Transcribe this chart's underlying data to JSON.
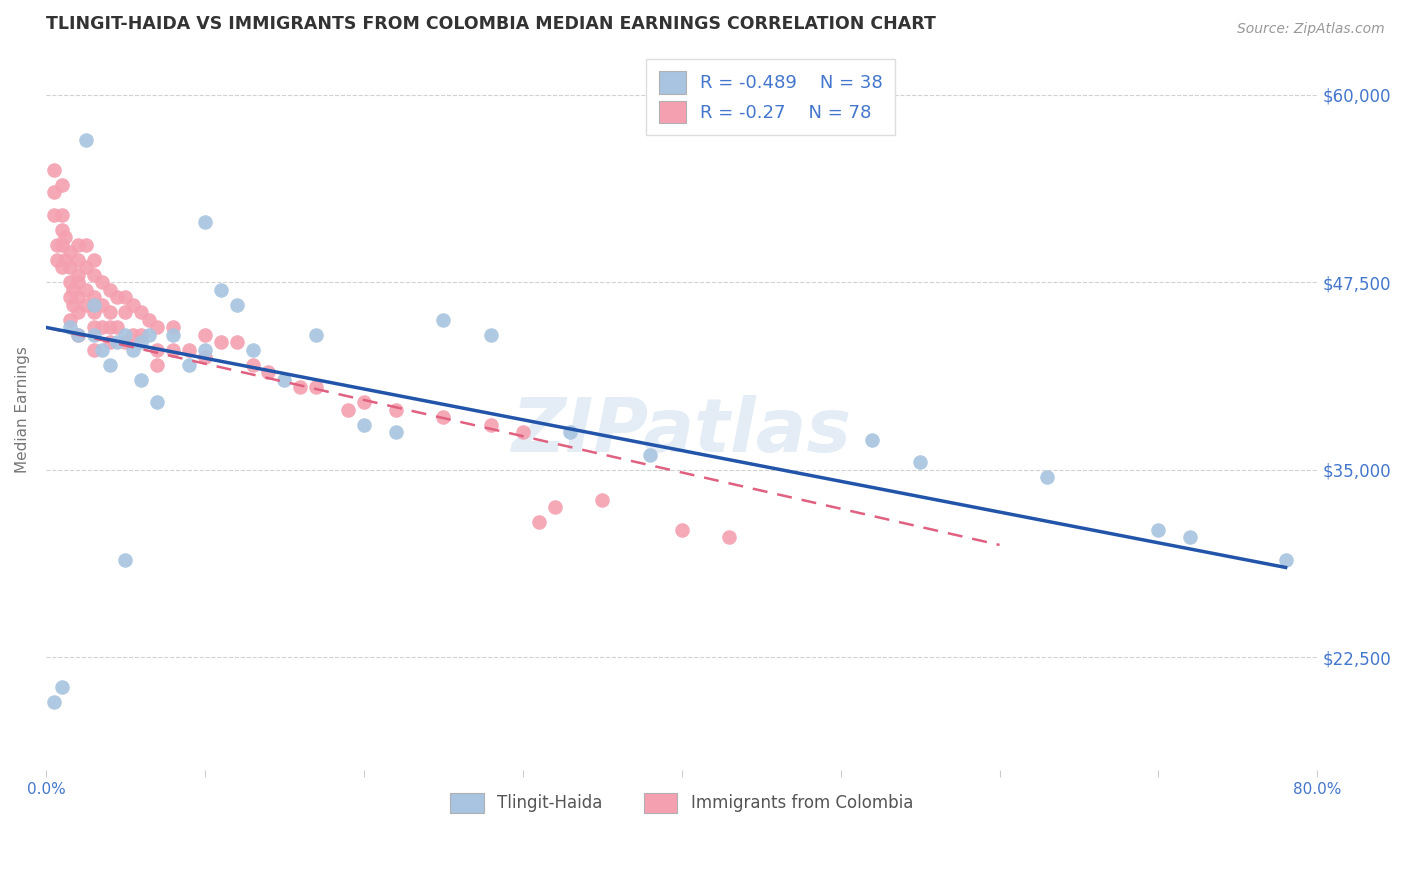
{
  "title": "TLINGIT-HAIDA VS IMMIGRANTS FROM COLOMBIA MEDIAN EARNINGS CORRELATION CHART",
  "source": "Source: ZipAtlas.com",
  "ylabel": "Median Earnings",
  "xlim": [
    0,
    0.8
  ],
  "ylim": [
    15000,
    63000
  ],
  "yticks": [
    22500,
    35000,
    47500,
    60000
  ],
  "ytick_labels": [
    "$22,500",
    "$35,000",
    "$47,500",
    "$60,000"
  ],
  "xticks": [
    0.0,
    0.1,
    0.2,
    0.3,
    0.4,
    0.5,
    0.6,
    0.7,
    0.8
  ],
  "background_color": "#ffffff",
  "grid_color": "#cccccc",
  "series1_name": "Tlingit-Haida",
  "series1_color": "#a8c4e0",
  "series1_edge_color": "#8ab0d4",
  "series1_line_color": "#2255aa",
  "series1_R": -0.489,
  "series1_N": 38,
  "series1_x": [
    0.005,
    0.01,
    0.015,
    0.02,
    0.025,
    0.03,
    0.03,
    0.035,
    0.04,
    0.045,
    0.05,
    0.05,
    0.055,
    0.06,
    0.06,
    0.065,
    0.07,
    0.08,
    0.09,
    0.1,
    0.1,
    0.11,
    0.12,
    0.13,
    0.15,
    0.17,
    0.2,
    0.22,
    0.25,
    0.28,
    0.33,
    0.38,
    0.52,
    0.55,
    0.63,
    0.7,
    0.72,
    0.78
  ],
  "series1_y": [
    19500,
    20500,
    44500,
    44000,
    57000,
    44000,
    46000,
    43000,
    42000,
    43500,
    29000,
    44000,
    43000,
    41000,
    43500,
    44000,
    39500,
    44000,
    42000,
    51500,
    43000,
    47000,
    46000,
    43000,
    41000,
    44000,
    38000,
    37500,
    45000,
    44000,
    37500,
    36000,
    37000,
    35500,
    34500,
    31000,
    30500,
    29000
  ],
  "series2_name": "Immigrants from Colombia",
  "series2_color": "#f4a0b0",
  "series2_edge_color": "#e080a0",
  "series2_line_color": "#e06080",
  "series2_R": -0.27,
  "series2_N": 78,
  "series2_x": [
    0.005,
    0.005,
    0.005,
    0.007,
    0.007,
    0.01,
    0.01,
    0.01,
    0.01,
    0.01,
    0.012,
    0.012,
    0.015,
    0.015,
    0.015,
    0.015,
    0.015,
    0.017,
    0.017,
    0.02,
    0.02,
    0.02,
    0.02,
    0.02,
    0.02,
    0.02,
    0.025,
    0.025,
    0.025,
    0.025,
    0.03,
    0.03,
    0.03,
    0.03,
    0.03,
    0.03,
    0.035,
    0.035,
    0.035,
    0.04,
    0.04,
    0.04,
    0.04,
    0.045,
    0.045,
    0.05,
    0.05,
    0.05,
    0.055,
    0.055,
    0.06,
    0.06,
    0.065,
    0.07,
    0.07,
    0.07,
    0.08,
    0.08,
    0.09,
    0.1,
    0.1,
    0.11,
    0.12,
    0.13,
    0.14,
    0.16,
    0.17,
    0.19,
    0.2,
    0.22,
    0.25,
    0.28,
    0.3,
    0.35,
    0.4,
    0.43,
    0.32,
    0.31
  ],
  "series2_y": [
    55000,
    53500,
    52000,
    50000,
    49000,
    54000,
    52000,
    51000,
    50000,
    48500,
    50500,
    49000,
    49500,
    48500,
    47500,
    46500,
    45000,
    47000,
    46000,
    50000,
    49000,
    48000,
    47500,
    46500,
    45500,
    44000,
    50000,
    48500,
    47000,
    46000,
    49000,
    48000,
    46500,
    45500,
    44500,
    43000,
    47500,
    46000,
    44500,
    47000,
    45500,
    44500,
    43500,
    46500,
    44500,
    46500,
    45500,
    43500,
    46000,
    44000,
    45500,
    44000,
    45000,
    44500,
    43000,
    42000,
    44500,
    43000,
    43000,
    44000,
    42500,
    43500,
    43500,
    42000,
    41500,
    40500,
    40500,
    39000,
    39500,
    39000,
    38500,
    38000,
    37500,
    33000,
    31000,
    30500,
    32500,
    31500
  ],
  "legend_R1": "R = -0.489",
  "legend_N1": "N = 38",
  "legend_N2": "N = 78",
  "watermark": "ZIPatlas",
  "axis_color": "#4477cc",
  "title_color": "#333333",
  "title_fontsize": 12.5
}
